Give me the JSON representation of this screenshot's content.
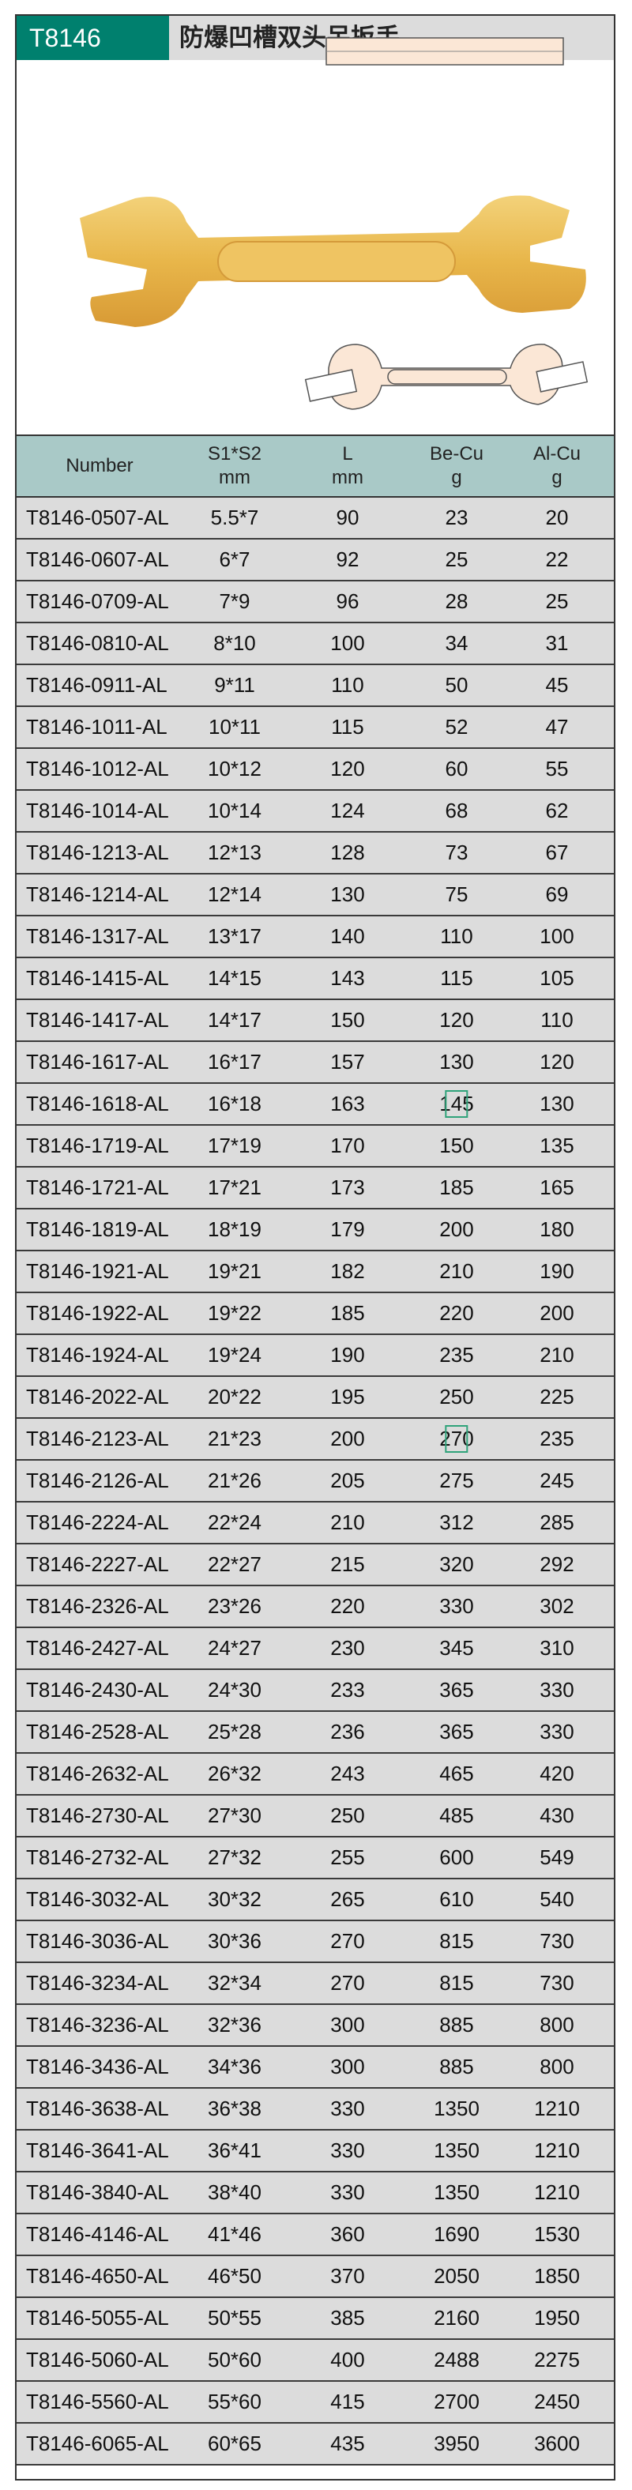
{
  "title": {
    "code": "T8146",
    "name": "防爆凹槽双头呆扳手"
  },
  "colors": {
    "accent": "#00806e",
    "header_bg": "#a9c9c7",
    "row_bg": "#dcdcdc",
    "highlight": "#2fa37a",
    "wrench": "#e8b64a"
  },
  "table": {
    "headers": [
      {
        "line1": "Number",
        "line2": ""
      },
      {
        "line1": "S1*S2",
        "line2": "mm"
      },
      {
        "line1": "L",
        "line2": "mm"
      },
      {
        "line1": "Be-Cu",
        "line2": "g"
      },
      {
        "line1": "Al-Cu",
        "line2": "g"
      }
    ],
    "rows": [
      [
        "T8146-0507-AL",
        "5.5*7",
        "90",
        "23",
        "20"
      ],
      [
        "T8146-0607-AL",
        "6*7",
        "92",
        "25",
        "22"
      ],
      [
        "T8146-0709-AL",
        "7*9",
        "96",
        "28",
        "25"
      ],
      [
        "T8146-0810-AL",
        "8*10",
        "100",
        "34",
        "31"
      ],
      [
        "T8146-0911-AL",
        "9*11",
        "110",
        "50",
        "45"
      ],
      [
        "T8146-1011-AL",
        "10*11",
        "115",
        "52",
        "47"
      ],
      [
        "T8146-1012-AL",
        "10*12",
        "120",
        "60",
        "55"
      ],
      [
        "T8146-1014-AL",
        "10*14",
        "124",
        "68",
        "62"
      ],
      [
        "T8146-1213-AL",
        "12*13",
        "128",
        "73",
        "67"
      ],
      [
        "T8146-1214-AL",
        "12*14",
        "130",
        "75",
        "69"
      ],
      [
        "T8146-1317-AL",
        "13*17",
        "140",
        "110",
        "100"
      ],
      [
        "T8146-1415-AL",
        "14*15",
        "143",
        "115",
        "105"
      ],
      [
        "T8146-1417-AL",
        "14*17",
        "150",
        "120",
        "110"
      ],
      [
        "T8146-1617-AL",
        "16*17",
        "157",
        "130",
        "120"
      ],
      [
        "T8146-1618-AL",
        "16*18",
        "163",
        "145",
        "130"
      ],
      [
        "T8146-1719-AL",
        "17*19",
        "170",
        "150",
        "135"
      ],
      [
        "T8146-1721-AL",
        "17*21",
        "173",
        "185",
        "165"
      ],
      [
        "T8146-1819-AL",
        "18*19",
        "179",
        "200",
        "180"
      ],
      [
        "T8146-1921-AL",
        "19*21",
        "182",
        "210",
        "190"
      ],
      [
        "T8146-1922-AL",
        "19*22",
        "185",
        "220",
        "200"
      ],
      [
        "T8146-1924-AL",
        "19*24",
        "190",
        "235",
        "210"
      ],
      [
        "T8146-2022-AL",
        "20*22",
        "195",
        "250",
        "225"
      ],
      [
        "T8146-2123-AL",
        "21*23",
        "200",
        "270",
        "235"
      ],
      [
        "T8146-2126-AL",
        "21*26",
        "205",
        "275",
        "245"
      ],
      [
        "T8146-2224-AL",
        "22*24",
        "210",
        "312",
        "285"
      ],
      [
        "T8146-2227-AL",
        "22*27",
        "215",
        "320",
        "292"
      ],
      [
        "T8146-2326-AL",
        "23*26",
        "220",
        "330",
        "302"
      ],
      [
        "T8146-2427-AL",
        "24*27",
        "230",
        "345",
        "310"
      ],
      [
        "T8146-2430-AL",
        "24*30",
        "233",
        "365",
        "330"
      ],
      [
        "T8146-2528-AL",
        "25*28",
        "236",
        "365",
        "330"
      ],
      [
        "T8146-2632-AL",
        "26*32",
        "243",
        "465",
        "420"
      ],
      [
        "T8146-2730-AL",
        "27*30",
        "250",
        "485",
        "430"
      ],
      [
        "T8146-2732-AL",
        "27*32",
        "255",
        "600",
        "549"
      ],
      [
        "T8146-3032-AL",
        "30*32",
        "265",
        "610",
        "540"
      ],
      [
        "T8146-3036-AL",
        "30*36",
        "270",
        "815",
        "730"
      ],
      [
        "T8146-3234-AL",
        "32*34",
        "270",
        "815",
        "730"
      ],
      [
        "T8146-3236-AL",
        "32*36",
        "300",
        "885",
        "800"
      ],
      [
        "T8146-3436-AL",
        "34*36",
        "300",
        "885",
        "800"
      ],
      [
        "T8146-3638-AL",
        "36*38",
        "330",
        "1350",
        "1210"
      ],
      [
        "T8146-3641-AL",
        "36*41",
        "330",
        "1350",
        "1210"
      ],
      [
        "T8146-3840-AL",
        "38*40",
        "330",
        "1350",
        "1210"
      ],
      [
        "T8146-4146-AL",
        "41*46",
        "360",
        "1690",
        "1530"
      ],
      [
        "T8146-4650-AL",
        "46*50",
        "370",
        "2050",
        "1850"
      ],
      [
        "T8146-5055-AL",
        "50*55",
        "385",
        "2160",
        "1950"
      ],
      [
        "T8146-5060-AL",
        "50*60",
        "400",
        "2488",
        "2275"
      ],
      [
        "T8146-5560-AL",
        "55*60",
        "415",
        "2700",
        "2450"
      ],
      [
        "T8146-6065-AL",
        "60*65",
        "435",
        "3950",
        "3600"
      ]
    ],
    "highlighted_cells": [
      [
        14,
        3
      ],
      [
        22,
        3
      ]
    ]
  }
}
